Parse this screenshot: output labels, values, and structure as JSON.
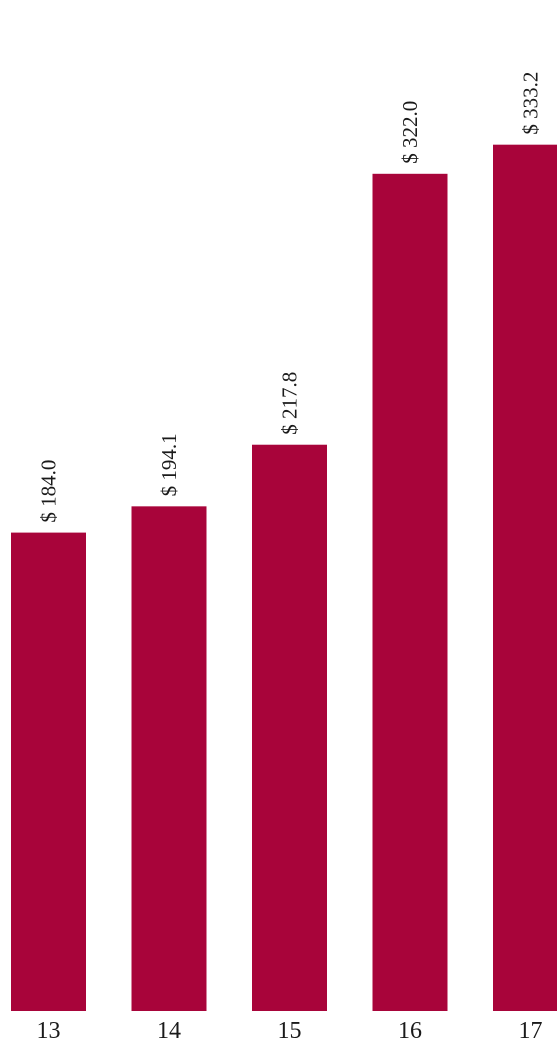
{
  "chart_data": {
    "type": "bar",
    "categories": [
      "13",
      "14",
      "15",
      "16",
      "17"
    ],
    "values": [
      184.0,
      194.1,
      217.8,
      322.0,
      333.2
    ],
    "data_labels": [
      "$ 184.0",
      "$ 194.1",
      "$ 217.8",
      "$ 322.0",
      "$ 333.2"
    ],
    "title": "",
    "xlabel": "",
    "ylabel": "",
    "ylim": [
      0,
      350
    ],
    "grid": false,
    "legend": "none",
    "bar_color": "#a8043a"
  }
}
